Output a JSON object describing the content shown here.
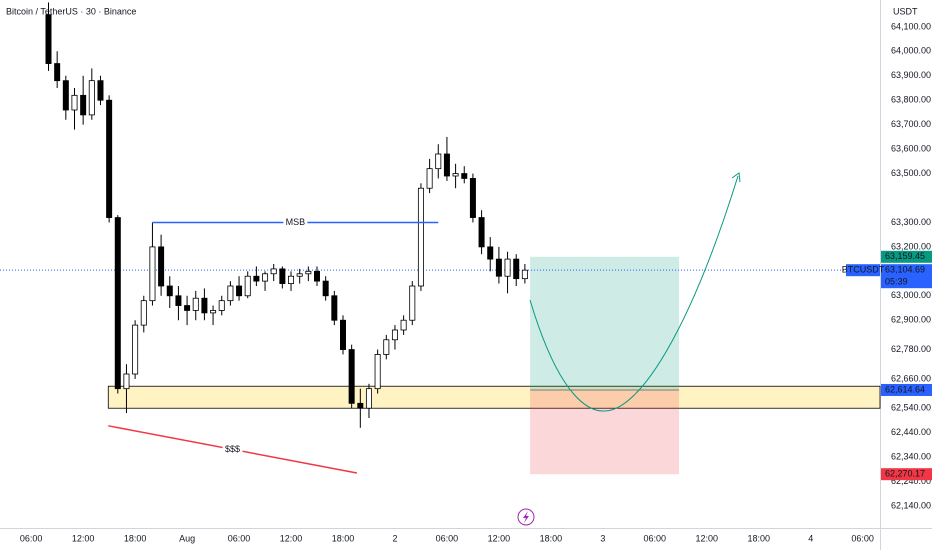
{
  "chart_data": {
    "type": "candlestick",
    "title": "Bitcoin / TetherUS · 30 · Binance",
    "currency": "USDT",
    "up_color": "#ffffff",
    "down_color": "#000000",
    "x": [
      2,
      3,
      4,
      5,
      6,
      7,
      8,
      9,
      10,
      11,
      12,
      13,
      14,
      15,
      16,
      17,
      18,
      19,
      20,
      21,
      22,
      23,
      24,
      25,
      26,
      27,
      28,
      29,
      30,
      31,
      32,
      33,
      34,
      35,
      36,
      37,
      38,
      39,
      40,
      41,
      42,
      43,
      44,
      45,
      46,
      47,
      48,
      49,
      50,
      51,
      52,
      53,
      54,
      55,
      56,
      57
    ],
    "open": [
      64150,
      63950,
      63880,
      63760,
      63820,
      63740,
      63880,
      63800,
      63320,
      62620,
      62680,
      62880,
      62980,
      63200,
      63040,
      63000,
      62960,
      62940,
      62990,
      62930,
      62940,
      62980,
      63040,
      63000,
      63080,
      63060,
      63090,
      63110,
      63050,
      63080,
      63090,
      63100,
      63060,
      63000,
      62900,
      62780,
      62560,
      62540,
      62620,
      62760,
      62820,
      62860,
      62900,
      63040,
      63440,
      63520,
      63580,
      63490,
      63500,
      63480,
      63320,
      63200,
      63150,
      63080,
      63150,
      63070
    ],
    "high": [
      64200,
      64000,
      63900,
      63850,
      63900,
      63930,
      63900,
      63820,
      63330,
      62720,
      62900,
      63000,
      63300,
      63250,
      63080,
      63040,
      63000,
      63020,
      63030,
      62960,
      63000,
      63060,
      63080,
      63100,
      63120,
      63100,
      63130,
      63120,
      63100,
      63110,
      63120,
      63120,
      63080,
      63020,
      62920,
      62800,
      62620,
      62640,
      62780,
      62840,
      62880,
      62920,
      63060,
      63460,
      63560,
      63620,
      63650,
      63540,
      63530,
      63500,
      63350,
      63240,
      63200,
      63180,
      63170,
      63130
    ],
    "low": [
      63920,
      63850,
      63720,
      63680,
      63700,
      63720,
      63780,
      63300,
      62600,
      62520,
      62660,
      62850,
      62960,
      63000,
      62950,
      62900,
      62880,
      62900,
      62900,
      62880,
      62920,
      62960,
      62980,
      62990,
      63040,
      63020,
      63060,
      63030,
      63020,
      63050,
      63060,
      63040,
      62980,
      62880,
      62760,
      62540,
      62460,
      62500,
      62600,
      62740,
      62780,
      62840,
      62880,
      63020,
      63420,
      63480,
      63470,
      63440,
      63460,
      63300,
      63170,
      63100,
      63050,
      63010,
      63040,
      63050
    ],
    "close": [
      63950,
      63880,
      63760,
      63820,
      63740,
      63880,
      63800,
      63320,
      62620,
      62680,
      62880,
      62980,
      63200,
      63040,
      63000,
      62960,
      62940,
      62990,
      62930,
      62940,
      62980,
      63040,
      63000,
      63080,
      63060,
      63090,
      63110,
      63050,
      63080,
      63090,
      63100,
      63060,
      63000,
      62900,
      62780,
      62560,
      62540,
      62620,
      62760,
      62820,
      62860,
      62900,
      63040,
      63440,
      63520,
      63580,
      63490,
      63500,
      63480,
      63320,
      63200,
      63150,
      63080,
      63150,
      63070,
      63104.69
    ],
    "xlim": [
      -3.6,
      98
    ],
    "xticks": [
      {
        "value": 0,
        "label": "06:00"
      },
      {
        "value": 6,
        "label": "12:00"
      },
      {
        "value": 12,
        "label": "18:00"
      },
      {
        "value": 18,
        "label": "Aug"
      },
      {
        "value": 24,
        "label": "06:00"
      },
      {
        "value": 30,
        "label": "12:00"
      },
      {
        "value": 36,
        "label": "18:00"
      },
      {
        "value": 42,
        "label": "2"
      },
      {
        "value": 48,
        "label": "06:00"
      },
      {
        "value": 54,
        "label": "12:00"
      },
      {
        "value": 60,
        "label": "18:00"
      },
      {
        "value": 66,
        "label": "3"
      },
      {
        "value": 72,
        "label": "06:00"
      },
      {
        "value": 78,
        "label": "12:00"
      },
      {
        "value": 84,
        "label": "18:00"
      },
      {
        "value": 90,
        "label": "4"
      },
      {
        "value": 96,
        "label": "06:00"
      }
    ],
    "ylim": [
      62050,
      64210
    ],
    "yticks": [
      {
        "value": 64100,
        "label": "64,100.00"
      },
      {
        "value": 64000,
        "label": "64,000.00"
      },
      {
        "value": 63900,
        "label": "63,900.00"
      },
      {
        "value": 63800,
        "label": "63,800.00"
      },
      {
        "value": 63700,
        "label": "63,700.00"
      },
      {
        "value": 63600,
        "label": "63,600.00"
      },
      {
        "value": 63500,
        "label": "63,500.00"
      },
      {
        "value": 63300,
        "label": "63,300.00"
      },
      {
        "value": 63200,
        "label": "63,200.00"
      },
      {
        "value": 63000,
        "label": "63,000.00"
      },
      {
        "value": 62900,
        "label": "62,900.00"
      },
      {
        "value": 62780,
        "label": "62,780.00"
      },
      {
        "value": 62660,
        "label": "62,660.00"
      },
      {
        "value": 62540,
        "label": "62,540.00"
      },
      {
        "value": 62440,
        "label": "62,440.00"
      },
      {
        "value": 62340,
        "label": "62,340.00"
      },
      {
        "value": 62240,
        "label": "62,240.00"
      },
      {
        "value": 62140,
        "label": "62,140.00"
      }
    ],
    "current": {
      "symbol": "BTCUSDT",
      "price": {
        "value": 63104.69,
        "label": "63,104.69"
      },
      "countdown": "05:39"
    },
    "annotations": {
      "msb": {
        "text": "MSB",
        "price": 63300,
        "x": [
          14,
          47
        ]
      },
      "liquidity": {
        "text": "$$$",
        "price": [
          62468,
          62275
        ],
        "x": [
          8.9,
          37.6
        ]
      },
      "zone": {
        "top": 62630,
        "bottom": 62540,
        "x": 8.9
      },
      "position": {
        "x": [
          57.6,
          74.8
        ],
        "target": {
          "value": 63159.45,
          "label": "63,159.45"
        },
        "entry": {
          "value": 62614.64,
          "label": "62,614.64"
        },
        "stop": {
          "value": 62270.17,
          "label": "62,270.17"
        }
      }
    }
  }
}
